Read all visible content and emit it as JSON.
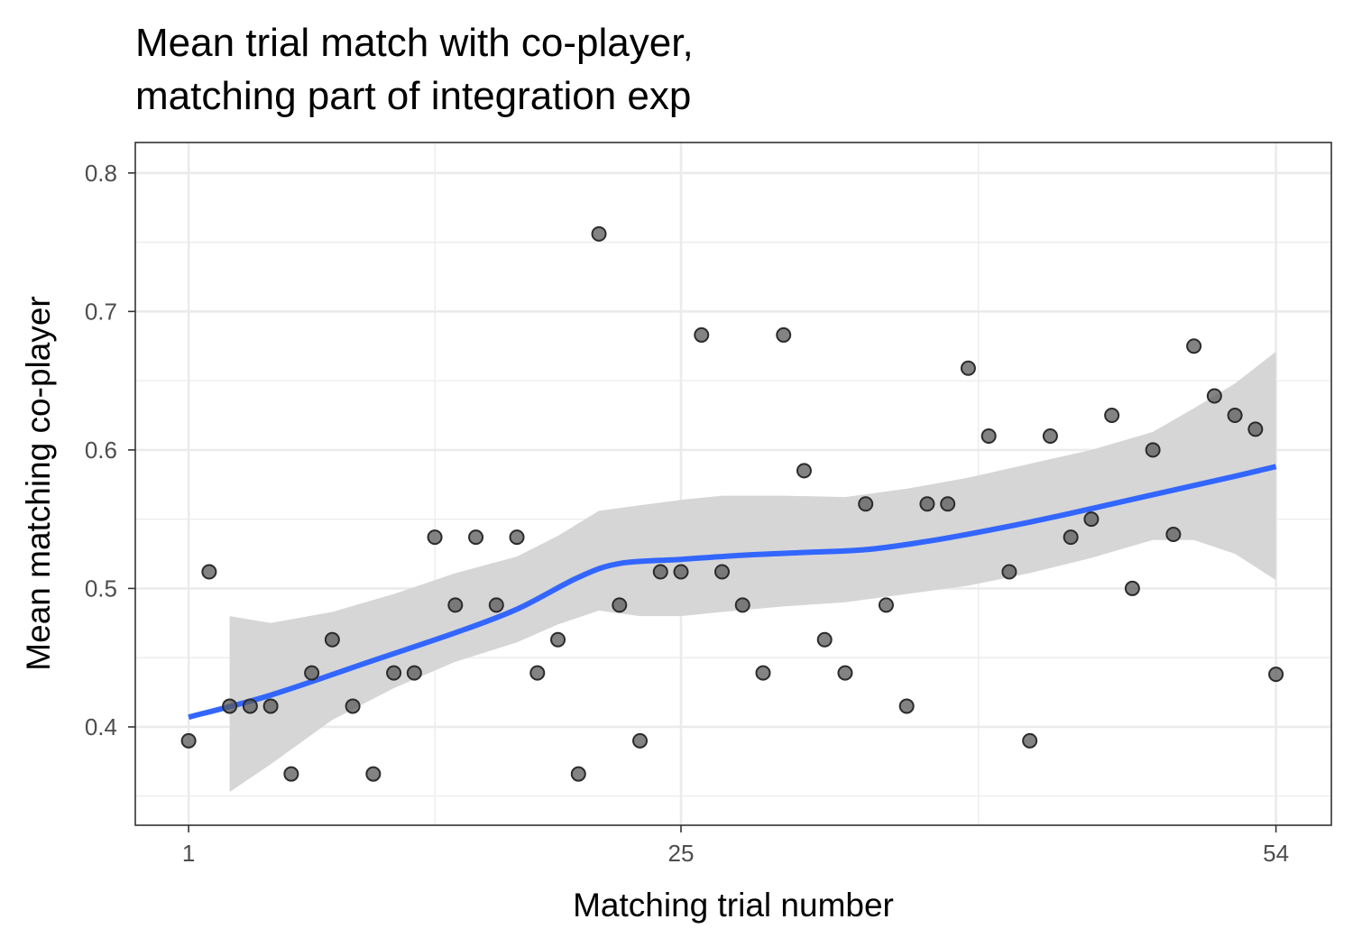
{
  "chart_data": {
    "type": "scatter",
    "title_lines": [
      "Mean trial match with co-player,",
      "matching part of integration exp"
    ],
    "xlabel": "Matching trial number",
    "ylabel": "Mean matching co-player",
    "xlim": [
      -1.6,
      56.7
    ],
    "ylim": [
      0.329,
      0.822
    ],
    "x_ticks": [
      1,
      25,
      54
    ],
    "x_tick_labels": [
      "1",
      "25",
      "54"
    ],
    "x_minor_ticks": [
      13,
      39.5
    ],
    "y_ticks": [
      0.4,
      0.5,
      0.6,
      0.7,
      0.8
    ],
    "y_tick_labels": [
      "0.4",
      "0.5",
      "0.6",
      "0.7",
      "0.8"
    ],
    "y_minor_ticks": [
      0.35,
      0.45,
      0.55,
      0.65,
      0.75
    ],
    "grid": true,
    "colors": {
      "points": "#595959",
      "smooth_line": "#3366ff",
      "confidence_band": "#d6d6d6",
      "grid": "#ebebeb",
      "panel_border": "#333333"
    },
    "points": [
      {
        "x": 1,
        "y": 0.39
      },
      {
        "x": 2,
        "y": 0.512
      },
      {
        "x": 3,
        "y": 0.415
      },
      {
        "x": 4,
        "y": 0.415
      },
      {
        "x": 5,
        "y": 0.415
      },
      {
        "x": 6,
        "y": 0.366
      },
      {
        "x": 7,
        "y": 0.439
      },
      {
        "x": 8,
        "y": 0.463
      },
      {
        "x": 9,
        "y": 0.415
      },
      {
        "x": 10,
        "y": 0.366
      },
      {
        "x": 11,
        "y": 0.439
      },
      {
        "x": 12,
        "y": 0.439
      },
      {
        "x": 13,
        "y": 0.537
      },
      {
        "x": 14,
        "y": 0.488
      },
      {
        "x": 15,
        "y": 0.537
      },
      {
        "x": 16,
        "y": 0.488
      },
      {
        "x": 17,
        "y": 0.537
      },
      {
        "x": 18,
        "y": 0.439
      },
      {
        "x": 19,
        "y": 0.463
      },
      {
        "x": 20,
        "y": 0.366
      },
      {
        "x": 21,
        "y": 0.756
      },
      {
        "x": 22,
        "y": 0.488
      },
      {
        "x": 23,
        "y": 0.39
      },
      {
        "x": 24,
        "y": 0.512
      },
      {
        "x": 25,
        "y": 0.512
      },
      {
        "x": 26,
        "y": 0.683
      },
      {
        "x": 27,
        "y": 0.512
      },
      {
        "x": 28,
        "y": 0.488
      },
      {
        "x": 29,
        "y": 0.439
      },
      {
        "x": 30,
        "y": 0.683
      },
      {
        "x": 31,
        "y": 0.585
      },
      {
        "x": 32,
        "y": 0.463
      },
      {
        "x": 33,
        "y": 0.439
      },
      {
        "x": 34,
        "y": 0.561
      },
      {
        "x": 35,
        "y": 0.488
      },
      {
        "x": 36,
        "y": 0.415
      },
      {
        "x": 37,
        "y": 0.561
      },
      {
        "x": 38,
        "y": 0.561
      },
      {
        "x": 39,
        "y": 0.659
      },
      {
        "x": 40,
        "y": 0.61
      },
      {
        "x": 41,
        "y": 0.512
      },
      {
        "x": 42,
        "y": 0.39
      },
      {
        "x": 43,
        "y": 0.61
      },
      {
        "x": 44,
        "y": 0.537
      },
      {
        "x": 45,
        "y": 0.55
      },
      {
        "x": 46,
        "y": 0.625
      },
      {
        "x": 47,
        "y": 0.5
      },
      {
        "x": 48,
        "y": 0.6
      },
      {
        "x": 49,
        "y": 0.539
      },
      {
        "x": 50,
        "y": 0.675
      },
      {
        "x": 51,
        "y": 0.639
      },
      {
        "x": 52,
        "y": 0.625
      },
      {
        "x": 53,
        "y": 0.615
      },
      {
        "x": 54,
        "y": 0.438
      }
    ],
    "smooth": [
      {
        "x": 1,
        "y": 0.407
      },
      {
        "x": 5,
        "y": 0.423
      },
      {
        "x": 10,
        "y": 0.448
      },
      {
        "x": 14,
        "y": 0.468
      },
      {
        "x": 17,
        "y": 0.485
      },
      {
        "x": 20,
        "y": 0.508
      },
      {
        "x": 22,
        "y": 0.518
      },
      {
        "x": 25,
        "y": 0.521
      },
      {
        "x": 28,
        "y": 0.524
      },
      {
        "x": 31,
        "y": 0.526
      },
      {
        "x": 34,
        "y": 0.528
      },
      {
        "x": 37,
        "y": 0.534
      },
      {
        "x": 40,
        "y": 0.542
      },
      {
        "x": 43,
        "y": 0.551
      },
      {
        "x": 46,
        "y": 0.561
      },
      {
        "x": 49,
        "y": 0.571
      },
      {
        "x": 52,
        "y": 0.581
      },
      {
        "x": 54,
        "y": 0.588
      }
    ],
    "confidence_band": [
      {
        "x": 3,
        "lower": 0.353,
        "upper": 0.48
      },
      {
        "x": 5,
        "lower": 0.373,
        "upper": 0.475
      },
      {
        "x": 8,
        "lower": 0.405,
        "upper": 0.483
      },
      {
        "x": 11,
        "lower": 0.428,
        "upper": 0.496
      },
      {
        "x": 14,
        "lower": 0.447,
        "upper": 0.511
      },
      {
        "x": 17,
        "lower": 0.461,
        "upper": 0.523
      },
      {
        "x": 19,
        "lower": 0.474,
        "upper": 0.538
      },
      {
        "x": 21,
        "lower": 0.484,
        "upper": 0.556
      },
      {
        "x": 23,
        "lower": 0.48,
        "upper": 0.56
      },
      {
        "x": 25,
        "lower": 0.48,
        "upper": 0.564
      },
      {
        "x": 27,
        "lower": 0.483,
        "upper": 0.567
      },
      {
        "x": 30,
        "lower": 0.487,
        "upper": 0.567
      },
      {
        "x": 33,
        "lower": 0.49,
        "upper": 0.566
      },
      {
        "x": 36,
        "lower": 0.496,
        "upper": 0.572
      },
      {
        "x": 39,
        "lower": 0.502,
        "upper": 0.58
      },
      {
        "x": 42,
        "lower": 0.511,
        "upper": 0.59
      },
      {
        "x": 45,
        "lower": 0.522,
        "upper": 0.6
      },
      {
        "x": 48,
        "lower": 0.535,
        "upper": 0.613
      },
      {
        "x": 50,
        "lower": 0.535,
        "upper": 0.63
      },
      {
        "x": 52,
        "lower": 0.525,
        "upper": 0.648
      },
      {
        "x": 54,
        "lower": 0.506,
        "upper": 0.671
      }
    ]
  }
}
